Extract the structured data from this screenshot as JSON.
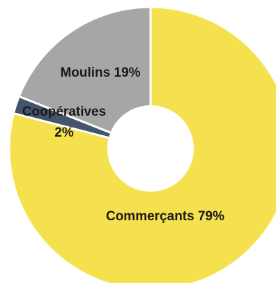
{
  "chart_data": {
    "type": "pie",
    "donut": true,
    "title": "",
    "slices": [
      {
        "label": "Commerçants",
        "value": 79,
        "percent_text": "79%",
        "color": "#F5E14D"
      },
      {
        "label": "Coopératives",
        "value": 2,
        "percent_text": "2%",
        "color": "#44546A"
      },
      {
        "label": "Moulins",
        "value": 19,
        "percent_text": "19%",
        "color": "#A6A6A6"
      }
    ],
    "labels": {
      "commercants": "Commerçants 79%",
      "cooperatives_line1": "Coopératives",
      "cooperatives_line2": "2%",
      "moulins": "Moulins 19%"
    },
    "legend": "none"
  }
}
